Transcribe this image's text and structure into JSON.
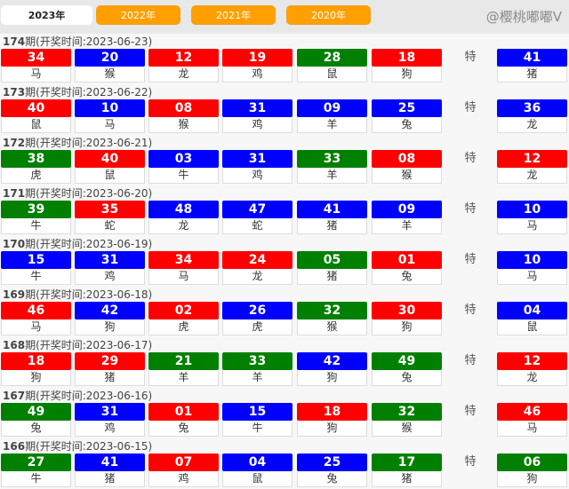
{
  "tabs": [
    {
      "label": "2023年",
      "active": true
    },
    {
      "label": "2022年"
    },
    {
      "label": "2021年"
    },
    {
      "label": "2020年"
    }
  ],
  "special_label": "特",
  "colors": {
    "red": "#ff0000",
    "blue": "#0000ff",
    "green": "#008000"
  },
  "watermark": "@樱桃嘟嘟V",
  "draws": [
    {
      "period": "174",
      "title": "期(开奖时间:2023-06-23)",
      "balls": [
        [
          "34",
          "马",
          "red"
        ],
        [
          "20",
          "猴",
          "blue"
        ],
        [
          "12",
          "龙",
          "red"
        ],
        [
          "19",
          "鸡",
          "red"
        ],
        [
          "28",
          "鼠",
          "green"
        ],
        [
          "18",
          "狗",
          "red"
        ]
      ],
      "special": [
        "41",
        "猪",
        "blue"
      ]
    },
    {
      "period": "173",
      "title": "期(开奖时间:2023-06-22)",
      "balls": [
        [
          "40",
          "鼠",
          "red"
        ],
        [
          "10",
          "马",
          "blue"
        ],
        [
          "08",
          "猴",
          "red"
        ],
        [
          "31",
          "鸡",
          "blue"
        ],
        [
          "09",
          "羊",
          "blue"
        ],
        [
          "25",
          "兔",
          "blue"
        ]
      ],
      "special": [
        "36",
        "龙",
        "blue"
      ]
    },
    {
      "period": "172",
      "title": "期(开奖时间:2023-06-21)",
      "balls": [
        [
          "38",
          "虎",
          "green"
        ],
        [
          "40",
          "鼠",
          "red"
        ],
        [
          "03",
          "牛",
          "blue"
        ],
        [
          "31",
          "鸡",
          "blue"
        ],
        [
          "33",
          "羊",
          "green"
        ],
        [
          "08",
          "猴",
          "red"
        ]
      ],
      "special": [
        "12",
        "龙",
        "red"
      ]
    },
    {
      "period": "171",
      "title": "期(开奖时间:2023-06-20)",
      "balls": [
        [
          "39",
          "牛",
          "green"
        ],
        [
          "35",
          "蛇",
          "red"
        ],
        [
          "48",
          "龙",
          "blue"
        ],
        [
          "47",
          "蛇",
          "blue"
        ],
        [
          "41",
          "猪",
          "blue"
        ],
        [
          "09",
          "羊",
          "blue"
        ]
      ],
      "special": [
        "10",
        "马",
        "blue"
      ]
    },
    {
      "period": "170",
      "title": "期(开奖时间:2023-06-19)",
      "balls": [
        [
          "15",
          "牛",
          "blue"
        ],
        [
          "31",
          "鸡",
          "blue"
        ],
        [
          "34",
          "马",
          "red"
        ],
        [
          "24",
          "龙",
          "red"
        ],
        [
          "05",
          "猪",
          "green"
        ],
        [
          "01",
          "兔",
          "red"
        ]
      ],
      "special": [
        "10",
        "马",
        "blue"
      ]
    },
    {
      "period": "169",
      "title": "期(开奖时间:2023-06-18)",
      "balls": [
        [
          "46",
          "马",
          "red"
        ],
        [
          "42",
          "狗",
          "blue"
        ],
        [
          "02",
          "虎",
          "red"
        ],
        [
          "26",
          "虎",
          "blue"
        ],
        [
          "32",
          "猴",
          "green"
        ],
        [
          "30",
          "狗",
          "red"
        ]
      ],
      "special": [
        "04",
        "鼠",
        "blue"
      ]
    },
    {
      "period": "168",
      "title": "期(开奖时间:2023-06-17)",
      "balls": [
        [
          "18",
          "狗",
          "red"
        ],
        [
          "29",
          "猪",
          "red"
        ],
        [
          "21",
          "羊",
          "green"
        ],
        [
          "33",
          "羊",
          "green"
        ],
        [
          "42",
          "狗",
          "blue"
        ],
        [
          "49",
          "兔",
          "green"
        ]
      ],
      "special": [
        "12",
        "龙",
        "red"
      ]
    },
    {
      "period": "167",
      "title": "期(开奖时间:2023-06-16)",
      "balls": [
        [
          "49",
          "兔",
          "green"
        ],
        [
          "31",
          "鸡",
          "blue"
        ],
        [
          "01",
          "兔",
          "red"
        ],
        [
          "15",
          "牛",
          "blue"
        ],
        [
          "18",
          "狗",
          "red"
        ],
        [
          "32",
          "猴",
          "green"
        ]
      ],
      "special": [
        "46",
        "马",
        "red"
      ]
    },
    {
      "period": "166",
      "title": "期(开奖时间:2023-06-15)",
      "balls": [
        [
          "27",
          "牛",
          "green"
        ],
        [
          "41",
          "猪",
          "blue"
        ],
        [
          "07",
          "鸡",
          "red"
        ],
        [
          "04",
          "鼠",
          "blue"
        ],
        [
          "25",
          "兔",
          "blue"
        ],
        [
          "17",
          "猪",
          "green"
        ]
      ],
      "special": [
        "06",
        "狗",
        "green"
      ]
    }
  ]
}
